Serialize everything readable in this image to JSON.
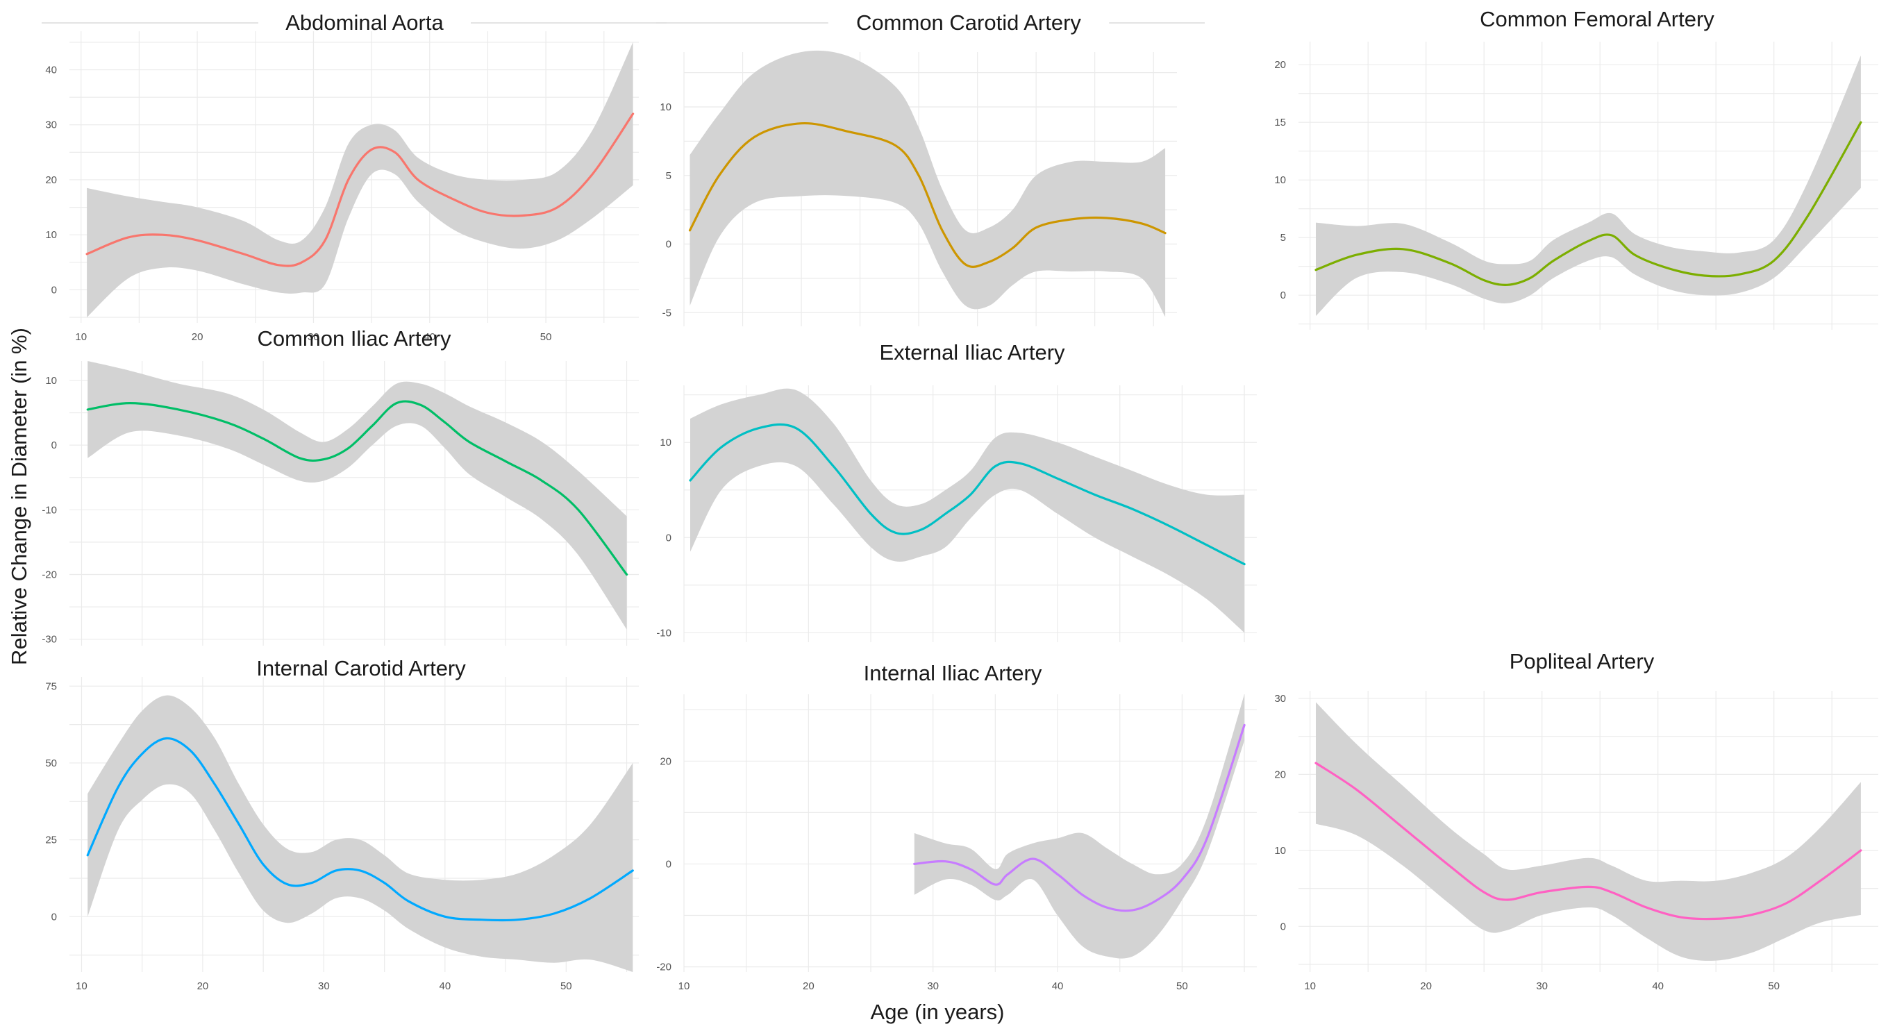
{
  "chart_data": {
    "type": "line",
    "xlabel": "Age (in years)",
    "ylabel": "Relative Change in Diameter (in %)",
    "band_color": "#d3d3d3",
    "panels": [
      {
        "title": "Abdominal Aorta",
        "color": "#f8766d",
        "xlim": [
          9,
          58
        ],
        "ylim": [
          -6,
          47
        ],
        "xticks": [
          "10",
          "20",
          "30",
          "40",
          "50"
        ],
        "yticks": [
          "0",
          "10",
          "20",
          "30",
          "40"
        ],
        "show_x_ticks": true,
        "series": [
          {
            "x": [
              10.5,
              14,
              17,
              20,
              24,
              27,
              29,
              31,
              33,
              35,
              37,
              39,
              42,
              45,
              48,
              51,
              54,
              57.5
            ],
            "y": [
              6.5,
              9.5,
              10,
              9,
              6.5,
              4.5,
              5,
              9,
              20,
              25.5,
              25,
              20,
              16.5,
              14,
              13.5,
              15,
              21,
              32
            ],
            "lower": [
              -5,
              2,
              4,
              3.5,
              1,
              -0.5,
              -0.5,
              1,
              13,
              21,
              21,
              16,
              11,
              8.5,
              7.5,
              9,
              13,
              19
            ],
            "upper": [
              18.5,
              17,
              16,
              15,
              12.5,
              9,
              9,
              15,
              26.5,
              30,
              29,
              24,
              21,
              20,
              20,
              21.5,
              29,
              45
            ]
          }
        ]
      },
      {
        "title": "Common Carotid Artery",
        "color": "#cd9600",
        "xlim": [
          10,
          52
        ],
        "ylim": [
          -6,
          14
        ],
        "xticks": [],
        "yticks": [
          "-5",
          "0",
          "5",
          "10"
        ],
        "show_x_ticks": false,
        "series": [
          {
            "x": [
              10.5,
              13,
              16,
              20,
              24,
              28,
              30,
              32,
              34,
              36,
              38,
              40,
              43,
              46,
              49,
              51
            ],
            "y": [
              1,
              5,
              7.8,
              8.8,
              8.2,
              7.2,
              5,
              1,
              -1.5,
              -1.3,
              -0.3,
              1.2,
              1.8,
              1.9,
              1.5,
              0.8
            ],
            "lower": [
              -4.5,
              0.5,
              3,
              3.5,
              3.5,
              3,
              1.5,
              -2,
              -4.5,
              -4.5,
              -3,
              -2,
              -2,
              -2,
              -2.5,
              -5.3
            ],
            "upper": [
              6.5,
              9.5,
              12.5,
              14,
              13.7,
              11.5,
              8.5,
              4,
              1,
              1.2,
              2.5,
              5,
              6,
              6,
              6,
              7
            ]
          }
        ]
      },
      {
        "title": "Common Femoral Artery",
        "color": "#7cae00",
        "xlim": [
          9,
          59
        ],
        "ylim": [
          -3,
          22
        ],
        "xticks": [],
        "yticks": [
          "0",
          "5",
          "10",
          "15",
          "20"
        ],
        "show_x_ticks": false,
        "series": [
          {
            "x": [
              10.5,
              14,
              18,
              22,
              25,
              27,
              29,
              31,
              34,
              36,
              38,
              41,
              44,
              47,
              50,
              53,
              57.5
            ],
            "y": [
              2.2,
              3.5,
              4,
              2.8,
              1.3,
              0.9,
              1.5,
              3,
              4.7,
              5.2,
              3.5,
              2.3,
              1.7,
              1.8,
              3,
              7,
              15
            ],
            "lower": [
              -1.8,
              1.5,
              2,
              1,
              -0.3,
              -0.7,
              0,
              1.5,
              3,
              3.3,
              1.8,
              0.5,
              0,
              0.2,
              1.5,
              4.5,
              9.3
            ],
            "upper": [
              6.3,
              6,
              6.2,
              4.6,
              3,
              2.7,
              3,
              4.8,
              6.3,
              7.1,
              5.3,
              4.2,
              3.8,
              3.7,
              4.8,
              10,
              20.8
            ]
          }
        ]
      },
      {
        "title": "Common Iliac Artery",
        "color": "#00be67",
        "xlim": [
          9,
          56
        ],
        "ylim": [
          -31,
          13
        ],
        "xticks": [],
        "yticks": [
          "-30",
          "-20",
          "-10",
          "0",
          "10"
        ],
        "show_x_ticks": false,
        "series": [
          {
            "x": [
              10.5,
              14,
              18,
              22,
              25,
              28,
              30,
              32,
              34,
              36,
              38,
              40,
              42,
              45,
              48,
              51,
              55
            ],
            "y": [
              5.5,
              6.5,
              5.5,
              3.5,
              1,
              -2,
              -2.2,
              -0.5,
              3,
              6.5,
              6.2,
              3.5,
              0.5,
              -2.5,
              -5.5,
              -10,
              -20
            ],
            "lower": [
              -2,
              2,
              1.5,
              -0.5,
              -3,
              -5.5,
              -5.5,
              -3.5,
              0,
              3,
              3,
              -0.5,
              -4.5,
              -8,
              -11.5,
              -17,
              -28.5
            ],
            "upper": [
              13,
              11.5,
              9.5,
              8,
              5.5,
              2,
              0.5,
              2.5,
              6,
              9.5,
              9.5,
              8,
              6,
              3.5,
              0.5,
              -4,
              -11
            ]
          }
        ]
      },
      {
        "title": "External Iliac Artery",
        "color": "#00bfc4",
        "xlim": [
          10,
          56
        ],
        "ylim": [
          -11,
          16
        ],
        "xticks": [],
        "yticks": [
          "-10",
          "0",
          "10"
        ],
        "show_x_ticks": false,
        "series": [
          {
            "x": [
              10.5,
              13,
              16,
              19,
              22,
              25,
              27,
              29,
              31,
              33,
              35,
              37,
              40,
              43,
              46,
              49,
              52,
              55
            ],
            "y": [
              6,
              9.5,
              11.5,
              11.5,
              7.5,
              2.5,
              0.5,
              0.8,
              2.5,
              4.5,
              7.5,
              7.8,
              6.2,
              4.5,
              3,
              1.2,
              -0.8,
              -2.8
            ],
            "lower": [
              -1.5,
              5,
              7.5,
              7.5,
              3.5,
              -1,
              -2.5,
              -2,
              -1,
              2,
              4.5,
              5,
              2.5,
              0,
              -2,
              -4,
              -6.5,
              -10
            ],
            "upper": [
              12.5,
              14,
              15,
              15.5,
              12,
              6,
              3.5,
              3.5,
              5,
              7,
              10.5,
              11,
              10,
              8.5,
              7,
              5.5,
              4.5,
              4.5
            ]
          }
        ]
      },
      {
        "title": "Internal Carotid Artery",
        "color": "#00a9ff",
        "xlim": [
          9,
          56
        ],
        "ylim": [
          -18,
          78
        ],
        "xticks": [
          "10",
          "20",
          "30",
          "40",
          "50"
        ],
        "yticks": [
          "0",
          "25",
          "50",
          "75"
        ],
        "show_x_ticks": true,
        "series": [
          {
            "x": [
              10.5,
              13,
              15,
              17,
              19,
              21,
              23,
              25,
              27,
              29,
              31,
              33,
              35,
              37,
              40,
              43,
              46,
              49,
              52,
              55.5
            ],
            "y": [
              20,
              42,
              53,
              58,
              54,
              43,
              30,
              17,
              10.5,
              11,
              15,
              15,
              11,
              5,
              0,
              -1,
              -1,
              1,
              6,
              15
            ],
            "lower": [
              0,
              28,
              38,
              43,
              40,
              28,
              14,
              2,
              -2,
              1,
              6,
              6,
              2,
              -4,
              -10,
              -13,
              -14,
              -15,
              -14,
              -18
            ],
            "upper": [
              40,
              56,
              67,
              72,
              68,
              58,
              43,
              30,
              22,
              21,
              25,
              25,
              20,
              14,
              12,
              12,
              14,
              20,
              30,
              50
            ]
          }
        ]
      },
      {
        "title": "Internal Iliac Artery",
        "color": "#c77cff",
        "xlim": [
          10,
          56
        ],
        "ylim": [
          -21,
          33
        ],
        "xticks": [
          "10",
          "20",
          "30",
          "40",
          "50"
        ],
        "yticks": [
          "-20",
          "0",
          "20"
        ],
        "show_x_ticks": true,
        "series": [
          {
            "x": [
              28.5,
              31,
              33,
              35,
              36,
              38,
              40,
              42,
              44,
              46,
              48,
              50,
              52,
              55
            ],
            "y": [
              0,
              0.5,
              -1,
              -4,
              -2,
              1,
              -2,
              -6,
              -8.5,
              -9,
              -7,
              -3,
              5,
              27
            ],
            "lower": [
              -6,
              -3,
              -4,
              -7,
              -6,
              -3,
              -10,
              -16,
              -18,
              -18,
              -14,
              -7,
              2,
              24
            ],
            "upper": [
              6,
              4,
              3,
              -1,
              2,
              4,
              5,
              6,
              3,
              0,
              -2,
              0,
              9,
              33
            ]
          }
        ]
      },
      {
        "title": "Popliteal Artery",
        "color": "#ff61c3",
        "xlim": [
          9,
          59
        ],
        "ylim": [
          -6,
          31
        ],
        "xticks": [
          "10",
          "20",
          "30",
          "40",
          "50"
        ],
        "yticks": [
          "0",
          "10",
          "20",
          "30"
        ],
        "show_x_ticks": true,
        "series": [
          {
            "x": [
              10.5,
              14,
              18,
              22,
              25,
              27,
              30,
              34,
              36,
              39,
              42,
              45,
              48,
              51,
              54,
              57.5
            ],
            "y": [
              21.5,
              18,
              13,
              8,
              4.5,
              3.5,
              4.5,
              5.2,
              4.5,
              2.5,
              1.2,
              1,
              1.5,
              3,
              6,
              10
            ],
            "lower": [
              13.5,
              12,
              8,
              3,
              -0.5,
              -0.5,
              1.5,
              2.5,
              1.5,
              -1.5,
              -4,
              -4.5,
              -3.5,
              -1.5,
              0.5,
              1.5
            ],
            "upper": [
              29.5,
              24,
              18.5,
              13,
              9.5,
              7.5,
              8,
              9,
              8,
              6,
              6,
              6,
              7,
              9,
              13,
              19
            ]
          }
        ]
      }
    ]
  }
}
